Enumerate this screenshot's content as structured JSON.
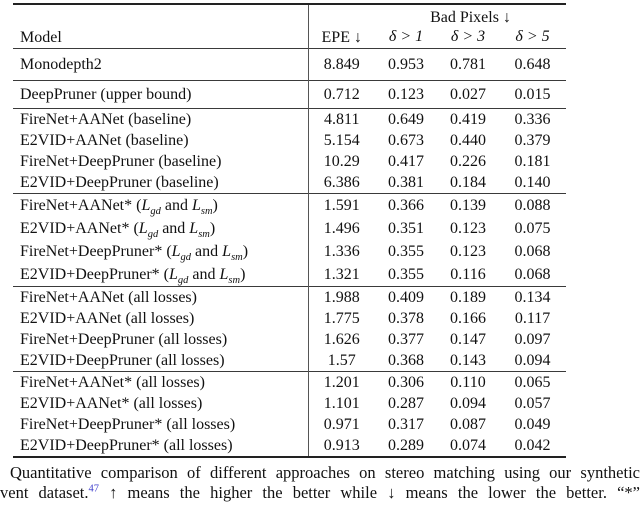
{
  "table": {
    "header": {
      "model": "Model",
      "epe": "EPE ↓",
      "bad_pixels": "Bad Pixels ↓",
      "delta1": "δ > 1",
      "delta3": "δ > 3",
      "delta5": "δ > 5"
    },
    "groups": [
      {
        "rows": [
          {
            "pre": "Monodepth2",
            "epe": "8.849",
            "d1": "0.953",
            "d3": "0.781",
            "d5": "0.648"
          }
        ]
      },
      {
        "rows": [
          {
            "pre": "DeepPruner (upper bound)",
            "epe": "0.712",
            "d1": "0.123",
            "d3": "0.027",
            "d5": "0.015"
          }
        ]
      },
      {
        "rows": [
          {
            "pre": "FireNet+AANet (baseline)",
            "epe": "4.811",
            "d1": "0.649",
            "d3": "0.419",
            "d5": "0.336"
          },
          {
            "pre": "E2VID+AANet (baseline)",
            "epe": "5.154",
            "d1": "0.673",
            "d3": "0.440",
            "d5": "0.379"
          },
          {
            "pre": "FireNet+DeepPruner (baseline)",
            "epe": "10.29",
            "d1": "0.417",
            "d3": "0.226",
            "d5": "0.181"
          },
          {
            "pre": "E2VID+DeepPruner (baseline)",
            "epe": "6.386",
            "d1": "0.381",
            "d3": "0.184",
            "d5": "0.140"
          }
        ]
      },
      {
        "rows": [
          {
            "pre": "FireNet+AANet* (",
            "l1": "L",
            "sub1": "gd",
            "mid": " and ",
            "l2": "L",
            "sub2": "sm",
            "post": ")",
            "epe": "1.591",
            "d1": "0.366",
            "d3": "0.139",
            "d5": "0.088"
          },
          {
            "pre": "E2VID+AANet* (",
            "l1": "L",
            "sub1": "gd",
            "mid": " and ",
            "l2": "L",
            "sub2": "sm",
            "post": ")",
            "epe": "1.496",
            "d1": "0.351",
            "d3": "0.123",
            "d5": "0.075"
          },
          {
            "pre": "FireNet+DeepPruner* (",
            "l1": "L",
            "sub1": "gd",
            "mid": " and ",
            "l2": "L",
            "sub2": "sm",
            "post": ")",
            "epe": "1.336",
            "d1": "0.355",
            "d3": "0.123",
            "d5": "0.068"
          },
          {
            "pre": "E2VID+DeepPruner* (",
            "l1": "L",
            "sub1": "gd",
            "mid": " and ",
            "l2": "L",
            "sub2": "sm",
            "post": ")",
            "epe": "1.321",
            "d1": "0.355",
            "d3": "0.116",
            "d5": "0.068"
          }
        ]
      },
      {
        "rows": [
          {
            "pre": "FireNet+AANet (all losses)",
            "epe": "1.988",
            "d1": "0.409",
            "d3": "0.189",
            "d5": "0.134"
          },
          {
            "pre": "E2VID+AANet (all losses)",
            "epe": "1.775",
            "d1": "0.378",
            "d3": "0.166",
            "d5": "0.117"
          },
          {
            "pre": "FireNet+DeepPruner (all losses)",
            "epe": "1.626",
            "d1": "0.377",
            "d3": "0.147",
            "d5": "0.097"
          },
          {
            "pre": "E2VID+DeepPruner (all losses)",
            "epe": "1.57",
            "d1": "0.368",
            "d3": "0.143",
            "d5": "0.094"
          }
        ]
      },
      {
        "rows": [
          {
            "pre": "FireNet+AANet* (all losses)",
            "epe": "1.201",
            "d1": "0.306",
            "d3": "0.110",
            "d5": "0.065"
          },
          {
            "pre": "E2VID+AANet* (all losses)",
            "epe": "1.101",
            "d1": "0.287",
            "d3": "0.094",
            "d5": "0.057"
          },
          {
            "pre": "FireNet+DeepPruner* (all losses)",
            "epe": "0.971",
            "d1": "0.317",
            "d3": "0.087",
            "d5": "0.049"
          },
          {
            "pre": "E2VID+DeepPruner* (all losses)",
            "epe": "0.913",
            "d1": "0.289",
            "d3": "0.074",
            "d5": "0.042"
          }
        ]
      }
    ]
  },
  "caption": {
    "line1": "Quantitative comparison of different approaches on stereo matching using our synthetic",
    "line2_pre": "vent dataset.",
    "citation": "47",
    "line2_mid": "↑ means the higher the better while ↓ means the lower the better.",
    "line2_end": "“*”"
  },
  "colors": {
    "citation": "#4040cc",
    "rule_heavy": "#222222",
    "rule_light": "#3a3a3a"
  }
}
